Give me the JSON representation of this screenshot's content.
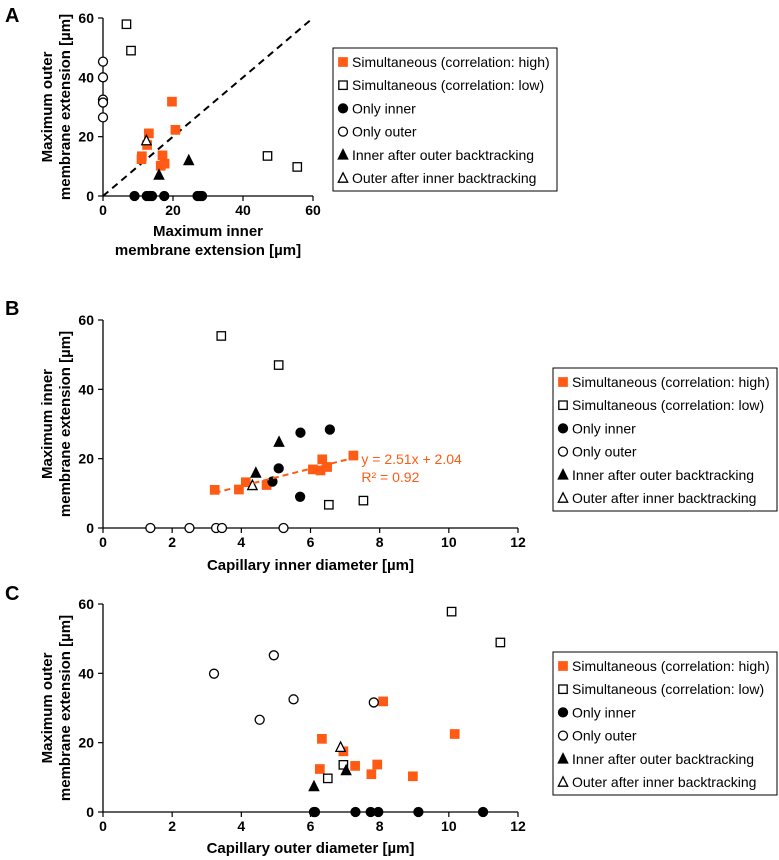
{
  "legend": [
    {
      "key": "sim_high",
      "label": "Simultaneous (correlation: high)",
      "marker": "square",
      "filled": true,
      "color": "#ff5b14"
    },
    {
      "key": "sim_low",
      "label": "Simultaneous (correlation: low)",
      "marker": "square",
      "filled": false,
      "color": "#000000"
    },
    {
      "key": "only_inner",
      "label": "Only inner",
      "marker": "circle",
      "filled": true,
      "color": "#000000"
    },
    {
      "key": "only_outer",
      "label": "Only outer",
      "marker": "circle",
      "filled": false,
      "color": "#000000"
    },
    {
      "key": "inner_after",
      "label": "Inner after outer backtracking",
      "marker": "triangle",
      "filled": true,
      "color": "#000000"
    },
    {
      "key": "outer_after",
      "label": "Outer after inner backtracking",
      "marker": "triangle",
      "filled": false,
      "color": "#000000"
    }
  ],
  "chart_data": [
    {
      "panel": "A",
      "type": "scatter",
      "xlabel": [
        "Maximum inner",
        "membrane extension [µm]"
      ],
      "ylabel": [
        "Maximum outer",
        "membrane extension [µm]"
      ],
      "xlim": [
        0,
        60
      ],
      "ylim": [
        0,
        60
      ],
      "xticks": [
        "0",
        "20",
        "40",
        "60"
      ],
      "yticks": [
        "0",
        "20",
        "40",
        "60"
      ],
      "reference_line": {
        "type": "identity",
        "style": "dashed",
        "from": [
          0,
          0
        ],
        "to": [
          60,
          60
        ]
      },
      "series": {
        "sim_high": [
          [
            19.7,
            31.8
          ],
          [
            20.7,
            22.3
          ],
          [
            13.1,
            21.1
          ],
          [
            12.6,
            17.2
          ],
          [
            11.1,
            13.4
          ],
          [
            11,
            12.4
          ],
          [
            17,
            13.7
          ],
          [
            16.5,
            10.2
          ],
          [
            17.6,
            10.9
          ]
        ],
        "sim_low": [
          [
            6.7,
            57.9
          ],
          [
            8,
            49
          ],
          [
            47,
            13.5
          ],
          [
            55.5,
            9.8
          ]
        ],
        "only_inner": [
          [
            9,
            0
          ],
          [
            12.5,
            0
          ],
          [
            13.3,
            0
          ],
          [
            14,
            0
          ],
          [
            17.5,
            0
          ],
          [
            27,
            0
          ],
          [
            27.7,
            0
          ],
          [
            28.3,
            0
          ]
        ],
        "only_outer": [
          [
            0,
            45.3
          ],
          [
            0,
            40
          ],
          [
            0,
            32.5
          ],
          [
            0,
            31.5
          ],
          [
            0,
            26.5
          ]
        ],
        "inner_after": [
          [
            16,
            7.1
          ],
          [
            24.5,
            12
          ]
        ],
        "outer_after": [
          [
            12.4,
            18.7
          ]
        ]
      }
    },
    {
      "panel": "B",
      "type": "scatter",
      "xlabel": [
        "Capillary inner diameter [µm]"
      ],
      "ylabel": [
        "Maximum inner",
        "membrane extension [µm]"
      ],
      "xlim": [
        0,
        12
      ],
      "ylim": [
        0,
        60
      ],
      "xticks": [
        "0",
        "2",
        "4",
        "6",
        "8",
        "10",
        "12"
      ],
      "yticks": [
        "0",
        "20",
        "40",
        "60"
      ],
      "trendline": {
        "series": "sim_high",
        "slope": 2.51,
        "intercept": 2.04,
        "x_range": [
          3.23,
          7.24
        ],
        "equation": "y = 2.51x + 2.04",
        "r2": "R² = 0.92"
      },
      "series": {
        "sim_high": [
          [
            3.23,
            11
          ],
          [
            3.93,
            11.1
          ],
          [
            4.13,
            13.2
          ],
          [
            4.73,
            12.4
          ],
          [
            6.07,
            16.9
          ],
          [
            6.29,
            16.6
          ],
          [
            6.34,
            19.8
          ],
          [
            6.48,
            17.6
          ],
          [
            7.24,
            20.9
          ]
        ],
        "sim_low": [
          [
            3.42,
            55.4
          ],
          [
            5.08,
            47
          ],
          [
            6.53,
            6.7
          ],
          [
            7.53,
            7.9
          ]
        ],
        "only_inner": [
          [
            5.71,
            27.5
          ],
          [
            6.56,
            28.4
          ],
          [
            5.08,
            17.2
          ],
          [
            4.9,
            13.4
          ],
          [
            5.7,
            9
          ]
        ],
        "only_outer": [
          [
            1.37,
            0
          ],
          [
            2.5,
            0
          ],
          [
            3.27,
            0
          ],
          [
            3.44,
            0
          ],
          [
            5.22,
            0
          ]
        ],
        "inner_after": [
          [
            5.09,
            24.8
          ],
          [
            4.42,
            15.9
          ]
        ],
        "outer_after": [
          [
            4.32,
            12.3
          ]
        ]
      }
    },
    {
      "panel": "C",
      "type": "scatter",
      "xlabel": [
        "Capillary outer diameter [µm]"
      ],
      "ylabel": [
        "Maximum outer",
        "membrane extension [µm]"
      ],
      "xlim": [
        0,
        12
      ],
      "ylim": [
        0,
        60
      ],
      "xticks": [
        "0",
        "2",
        "4",
        "6",
        "8",
        "10",
        "12"
      ],
      "yticks": [
        "0",
        "20",
        "40",
        "60"
      ],
      "series": {
        "sim_high": [
          [
            8.1,
            31.9
          ],
          [
            10.17,
            22.5
          ],
          [
            6.33,
            21.1
          ],
          [
            6.95,
            17.5
          ],
          [
            6.27,
            12.4
          ],
          [
            7.29,
            13.3
          ],
          [
            7.93,
            13.7
          ],
          [
            7.76,
            10.9
          ],
          [
            8.96,
            10.3
          ]
        ],
        "sim_low": [
          [
            10.08,
            57.8
          ],
          [
            11.49,
            48.9
          ],
          [
            6.95,
            13.6
          ],
          [
            6.5,
            9.7
          ]
        ],
        "only_inner": [
          [
            6.1,
            0
          ],
          [
            6.13,
            0
          ],
          [
            7.3,
            0
          ],
          [
            7.74,
            0
          ],
          [
            7.96,
            0
          ],
          [
            9.12,
            0
          ],
          [
            10.99,
            0
          ]
        ],
        "only_outer": [
          [
            3.21,
            39.9
          ],
          [
            4.94,
            45.2
          ],
          [
            5.51,
            32.5
          ],
          [
            4.53,
            26.6
          ],
          [
            7.83,
            31.6
          ]
        ],
        "inner_after": [
          [
            6.1,
            7.4
          ],
          [
            7.03,
            12
          ]
        ],
        "outer_after": [
          [
            6.87,
            18.7
          ]
        ]
      }
    }
  ]
}
